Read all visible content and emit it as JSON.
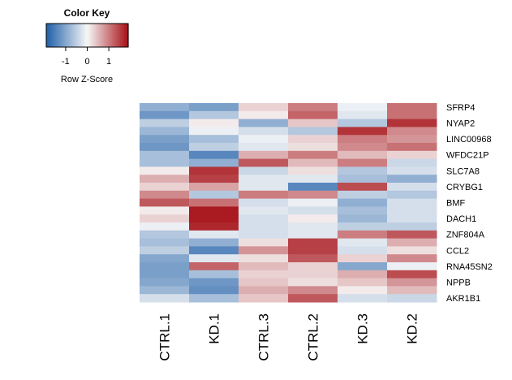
{
  "chart_data": {
    "type": "heatmap",
    "color_key": {
      "title": "Color Key",
      "xlabel": "Row Z-Score",
      "ticks": [
        -1,
        0,
        1
      ],
      "range": [
        -1.9,
        1.9
      ],
      "colors": {
        "low": "#1f5fa8",
        "mid": "#f7f7f7",
        "high": "#a50f15"
      }
    },
    "columns": [
      "CTRL.1",
      "KD.1",
      "CTRL.3",
      "CTRL.2",
      "KD.3",
      "KD.2"
    ],
    "rows": [
      "SFRP4",
      "",
      "NYAP2",
      "",
      "LINC00968",
      "",
      "WFDC21P",
      "",
      "SLC7A8",
      "",
      "CRYBG1",
      "",
      "BMF",
      "",
      "DACH1",
      "",
      "ZNF804A",
      "",
      "CCL2",
      "",
      "RNA45SN2",
      "",
      "NPPB",
      "",
      "AKR1B1"
    ],
    "values": [
      [
        -0.9,
        -1.1,
        0.3,
        1.0,
        -0.1,
        1.1
      ],
      [
        -1.2,
        -0.6,
        0.1,
        1.2,
        -0.2,
        1.1
      ],
      [
        -0.5,
        0.1,
        -0.9,
        0.4,
        -0.6,
        1.6
      ],
      [
        -0.8,
        -0.1,
        -0.3,
        -0.6,
        1.6,
        0.9
      ],
      [
        -1.1,
        -0.7,
        -0.1,
        0.3,
        1.0,
        0.8
      ],
      [
        -1.2,
        -0.5,
        -0.2,
        0.2,
        0.9,
        1.1
      ],
      [
        -0.7,
        -1.4,
        0.6,
        1.0,
        0.5,
        0.3
      ],
      [
        -0.7,
        -0.9,
        1.3,
        0.5,
        1.0,
        -0.4
      ],
      [
        0.1,
        1.6,
        -0.4,
        0.2,
        -0.6,
        -0.3
      ],
      [
        0.6,
        1.5,
        -0.2,
        -0.2,
        -0.7,
        -0.9
      ],
      [
        0.3,
        0.7,
        -0.2,
        -1.4,
        1.4,
        -0.3
      ],
      [
        0.9,
        -0.6,
        1.0,
        0.9,
        -0.5,
        -0.6
      ],
      [
        1.3,
        1.1,
        -0.3,
        -0.1,
        -0.9,
        -0.3
      ],
      [
        0.1,
        1.8,
        -0.2,
        -0.3,
        -0.7,
        -0.3
      ],
      [
        0.3,
        1.8,
        -0.3,
        0.1,
        -0.8,
        -0.3
      ],
      [
        -0.1,
        1.7,
        -0.3,
        -0.2,
        -0.5,
        -0.5
      ],
      [
        -0.6,
        -0.2,
        -0.3,
        -0.2,
        1.0,
        1.3
      ],
      [
        -0.7,
        -0.9,
        0.2,
        1.5,
        -0.2,
        0.6
      ],
      [
        -0.5,
        -1.4,
        0.8,
        1.5,
        -0.3,
        0.2
      ],
      [
        -1.0,
        -0.2,
        0.2,
        1.3,
        0.3,
        0.9
      ],
      [
        -1.1,
        1.2,
        0.5,
        0.3,
        -1.0,
        -0.1
      ],
      [
        -1.1,
        -0.7,
        0.3,
        0.3,
        0.6,
        1.4
      ],
      [
        -1.0,
        -1.2,
        0.4,
        0.2,
        0.4,
        0.8
      ],
      [
        -0.8,
        -1.3,
        0.6,
        0.9,
        0.1,
        0.5
      ],
      [
        -0.3,
        -0.7,
        0.4,
        1.3,
        -0.3,
        -0.4
      ]
    ]
  }
}
